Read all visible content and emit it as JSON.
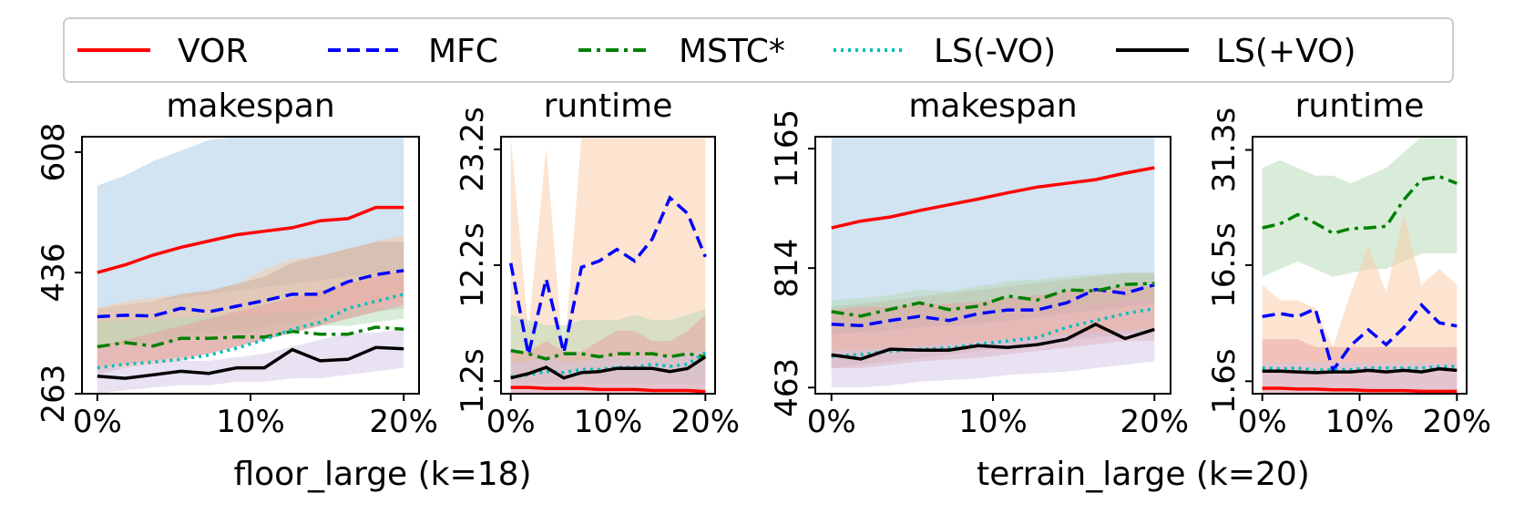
{
  "legend": {
    "placement": "top-center",
    "entries": [
      {
        "name": "VOR",
        "color": "#ff0000",
        "dash": "solid"
      },
      {
        "name": "MFC",
        "color": "#0000ff",
        "dash": "dashed"
      },
      {
        "name": "MSTC*",
        "color": "#008000",
        "dash": "dashdot"
      },
      {
        "name": "LS(-VO)",
        "color": "#00bfbf",
        "dash": "dotted"
      },
      {
        "name": "LS(+VO)",
        "color": "#000000",
        "dash": "solid"
      }
    ]
  },
  "groups": [
    {
      "xlabel": "floor_large (k=18)"
    },
    {
      "xlabel": "terrain_large (k=20)"
    }
  ],
  "chart_data": [
    {
      "type": "line",
      "title": "makespan",
      "group": 0,
      "x": [
        0,
        1.82,
        3.64,
        5.45,
        7.27,
        9.09,
        10.91,
        12.73,
        14.55,
        16.36,
        18.18,
        20
      ],
      "x_ticks": [
        "0%",
        "10%",
        "20%"
      ],
      "x_tick_values": [
        0,
        10,
        20
      ],
      "y_ticks": [
        "263",
        "436",
        "608"
      ],
      "y_tick_values": [
        263,
        436,
        608
      ],
      "ylim": [
        263,
        630
      ],
      "grid": false,
      "bands": [
        {
          "color": "#a6c8e3",
          "lower": [
            385,
            390,
            395,
            400,
            405,
            410,
            415,
            420,
            425,
            430,
            435,
            440
          ],
          "upper": [
            560,
            575,
            595,
            610,
            625,
            635,
            640,
            645,
            645,
            648,
            650,
            655
          ]
        },
        {
          "color": "#f9c9a3",
          "lower": [
            330,
            335,
            340,
            345,
            350,
            355,
            360,
            365,
            375,
            385,
            390,
            400
          ],
          "upper": [
            385,
            395,
            400,
            405,
            410,
            420,
            440,
            455,
            460,
            470,
            480,
            490
          ]
        },
        {
          "color": "#c8ab9c",
          "lower": [
            300,
            305,
            310,
            315,
            320,
            330,
            340,
            350,
            360,
            370,
            380,
            385
          ],
          "upper": [
            385,
            390,
            395,
            405,
            410,
            420,
            430,
            450,
            460,
            470,
            480,
            480
          ]
        },
        {
          "color": "#b4d9b4",
          "lower": [
            330,
            335,
            335,
            340,
            345,
            350,
            350,
            355,
            360,
            360,
            365,
            370
          ],
          "upper": [
            365,
            368,
            368,
            372,
            374,
            376,
            378,
            380,
            382,
            385,
            388,
            388
          ]
        },
        {
          "color": "#e7a0a0",
          "lower": [
            290,
            300,
            305,
            310,
            320,
            330,
            340,
            350,
            360,
            370,
            380,
            390
          ],
          "upper": [
            330,
            340,
            350,
            360,
            370,
            380,
            390,
            400,
            410,
            420,
            430,
            440
          ]
        },
        {
          "color": "#d4c6e6",
          "lower": [
            263,
            268,
            272,
            275,
            275,
            280,
            280,
            285,
            285,
            290,
            295,
            300
          ],
          "upper": [
            300,
            300,
            305,
            310,
            310,
            315,
            320,
            330,
            340,
            350,
            350,
            355
          ]
        }
      ],
      "series": [
        {
          "name": "VOR",
          "values": [
            436,
            447,
            461,
            472,
            481,
            490,
            495,
            500,
            510,
            513,
            529,
            529
          ]
        },
        {
          "name": "MFC",
          "values": [
            373,
            375,
            374,
            385,
            380,
            388,
            396,
            405,
            405,
            423,
            433,
            439
          ]
        },
        {
          "name": "MSTC*",
          "values": [
            330,
            336,
            331,
            342,
            342,
            344,
            344,
            352,
            348,
            348,
            358,
            355
          ]
        },
        {
          "name": "LS(-VO)",
          "values": [
            300,
            305,
            308,
            312,
            318,
            328,
            340,
            355,
            365,
            385,
            395,
            405
          ]
        },
        {
          "name": "LS(+VO)",
          "values": [
            288,
            285,
            290,
            295,
            292,
            300,
            300,
            326,
            310,
            312,
            329,
            327
          ]
        }
      ]
    },
    {
      "type": "line",
      "title": "runtime",
      "group": 0,
      "x": [
        0,
        1.82,
        3.64,
        5.45,
        7.27,
        9.09,
        10.91,
        12.73,
        14.55,
        16.36,
        18.18,
        20
      ],
      "x_ticks": [
        "0%",
        "10%",
        "20%"
      ],
      "x_tick_values": [
        0,
        10,
        20
      ],
      "y_ticks": [
        "1.2s",
        "12.2s",
        "23.2s"
      ],
      "y_tick_values": [
        1.2,
        12.2,
        23.2
      ],
      "ylim": [
        0,
        24.4
      ],
      "grid": false,
      "bands": [
        {
          "color": "#f9c9a3",
          "lower": [
            0,
            0,
            0,
            0,
            0,
            0,
            0,
            0,
            0,
            0,
            0,
            0
          ],
          "upper": [
            24.4,
            6,
            23.4,
            3,
            24.4,
            24.4,
            24.4,
            24.4,
            24.4,
            24.4,
            24.4,
            24.4
          ]
        },
        {
          "color": "#b4d9b4",
          "lower": [
            1.0,
            1.0,
            1.0,
            1.0,
            1.0,
            1.0,
            1.0,
            1.0,
            1.0,
            1.0,
            1.0,
            1.0
          ],
          "upper": [
            7.5,
            7.0,
            6.5,
            6.5,
            7.0,
            7.0,
            7.0,
            7.5,
            7.0,
            7.0,
            7.5,
            8.0
          ]
        },
        {
          "color": "#e7a0a0",
          "lower": [
            0,
            0,
            0,
            0,
            0,
            0,
            0,
            0,
            0,
            0,
            0,
            0
          ],
          "upper": [
            4,
            4,
            5,
            4,
            4,
            5,
            6,
            6,
            5,
            5,
            6,
            7.5
          ]
        },
        {
          "color": "#d4c6e6",
          "lower": [
            0,
            0,
            0,
            0,
            0,
            0,
            0,
            0,
            0,
            0,
            0,
            0
          ],
          "upper": [
            3,
            3,
            3.5,
            3,
            3,
            3.5,
            3.5,
            3.5,
            3.5,
            3.5,
            4,
            4
          ]
        }
      ],
      "series": [
        {
          "name": "VOR",
          "values": [
            0.6,
            0.6,
            0.5,
            0.5,
            0.5,
            0.4,
            0.4,
            0.4,
            0.3,
            0.3,
            0.3,
            0.2
          ]
        },
        {
          "name": "MFC",
          "values": [
            12.4,
            3.7,
            10.9,
            3.9,
            12.0,
            12.6,
            13.7,
            12.6,
            14.7,
            18.6,
            17.1,
            13.0
          ]
        },
        {
          "name": "MSTC*",
          "values": [
            4.1,
            3.8,
            3.3,
            3.8,
            3.8,
            3.5,
            3.8,
            3.8,
            3.8,
            3.5,
            3.8,
            3.5
          ]
        },
        {
          "name": "LS(-VO)",
          "values": [
            1.6,
            1.8,
            2.1,
            2.0,
            2.3,
            2.3,
            2.5,
            2.5,
            2.8,
            2.6,
            2.8,
            3.9
          ]
        },
        {
          "name": "LS(+VO)",
          "values": [
            1.5,
            1.9,
            2.5,
            1.5,
            2.0,
            2.1,
            2.4,
            2.4,
            2.4,
            2.1,
            2.4,
            3.5
          ]
        }
      ]
    },
    {
      "type": "line",
      "title": "makespan",
      "group": 1,
      "x": [
        0,
        1.82,
        3.64,
        5.45,
        7.27,
        9.09,
        10.91,
        12.73,
        14.55,
        16.36,
        18.18,
        20
      ],
      "x_ticks": [
        "0%",
        "10%",
        "20%"
      ],
      "x_tick_values": [
        0,
        10,
        20
      ],
      "y_ticks": [
        "463",
        "814",
        "1165"
      ],
      "y_tick_values": [
        463,
        814,
        1165
      ],
      "ylim": [
        445,
        1200
      ],
      "grid": false,
      "bands": [
        {
          "color": "#a6c8e3",
          "lower": [
            620,
            625,
            630,
            640,
            645,
            650,
            660,
            670,
            680,
            690,
            700,
            710
          ],
          "upper": [
            1200,
            1200,
            1200,
            1200,
            1200,
            1200,
            1200,
            1200,
            1200,
            1200,
            1200,
            1200
          ]
        },
        {
          "color": "#c8ab9c",
          "lower": [
            520,
            530,
            540,
            550,
            560,
            570,
            580,
            590,
            600,
            610,
            620,
            630
          ],
          "upper": [
            700,
            710,
            720,
            730,
            740,
            750,
            760,
            770,
            780,
            790,
            800,
            800
          ]
        },
        {
          "color": "#b4d9b4",
          "lower": [
            630,
            640,
            650,
            660,
            660,
            670,
            680,
            690,
            700,
            710,
            720,
            720
          ],
          "upper": [
            720,
            725,
            735,
            750,
            745,
            760,
            775,
            780,
            790,
            795,
            800,
            800
          ]
        },
        {
          "color": "#e7a0a0",
          "lower": [
            520,
            520,
            530,
            540,
            545,
            550,
            560,
            570,
            580,
            590,
            600,
            600
          ],
          "upper": [
            690,
            700,
            700,
            710,
            710,
            715,
            725,
            735,
            745,
            755,
            760,
            760
          ]
        },
        {
          "color": "#d4c6e6",
          "lower": [
            463,
            463,
            470,
            480,
            485,
            490,
            500,
            505,
            510,
            520,
            530,
            540
          ],
          "upper": [
            570,
            575,
            580,
            585,
            590,
            600,
            605,
            610,
            620,
            625,
            630,
            640
          ]
        }
      ],
      "series": [
        {
          "name": "VOR",
          "values": [
            932,
            952,
            964,
            983,
            1000,
            1017,
            1035,
            1052,
            1063,
            1074,
            1093,
            1109
          ]
        },
        {
          "name": "MFC",
          "values": [
            649,
            645,
            660,
            672,
            660,
            680,
            691,
            691,
            712,
            751,
            740,
            765
          ]
        },
        {
          "name": "MSTC*",
          "values": [
            686,
            673,
            693,
            712,
            692,
            702,
            732,
            720,
            750,
            747,
            766,
            769
          ]
        },
        {
          "name": "LS(-VO)",
          "values": [
            555,
            560,
            570,
            575,
            580,
            590,
            600,
            610,
            640,
            660,
            680,
            695
          ]
        },
        {
          "name": "LS(+VO)",
          "values": [
            559,
            547,
            576,
            573,
            573,
            586,
            581,
            589,
            605,
            649,
            607,
            634
          ]
        }
      ]
    },
    {
      "type": "line",
      "title": "runtime",
      "group": 1,
      "x": [
        0,
        1.82,
        3.64,
        5.45,
        7.27,
        9.09,
        10.91,
        12.73,
        14.55,
        16.36,
        18.18,
        20
      ],
      "x_ticks": [
        "0%",
        "10%",
        "20%"
      ],
      "x_tick_values": [
        0,
        10,
        20
      ],
      "y_ticks": [
        "1.6s",
        "16.5s",
        "31.3s"
      ],
      "y_tick_values": [
        1.6,
        16.5,
        31.3
      ],
      "ylim": [
        0,
        33
      ],
      "grid": false,
      "bands": [
        {
          "color": "#b4d9b4",
          "lower": [
            15,
            16,
            17,
            16,
            15,
            15.5,
            16,
            16,
            17,
            18,
            18,
            18
          ],
          "upper": [
            29,
            30,
            29,
            28,
            28,
            27,
            28,
            29,
            31,
            33,
            33,
            33
          ]
        },
        {
          "color": "#f9c9a3",
          "lower": [
            0,
            0,
            0,
            0,
            0,
            0,
            0,
            0,
            0,
            0,
            0,
            0
          ],
          "upper": [
            14,
            12,
            12,
            11,
            6,
            13,
            19,
            13,
            23,
            14,
            16,
            14
          ]
        },
        {
          "color": "#e7a0a0",
          "lower": [
            0,
            0,
            0,
            0,
            0,
            0,
            0,
            0,
            0,
            0,
            0,
            0
          ],
          "upper": [
            7,
            7,
            7,
            6,
            6,
            6,
            6,
            6,
            6,
            6,
            6,
            6
          ]
        },
        {
          "color": "#d4c6e6",
          "lower": [
            0,
            0,
            0,
            0,
            0,
            0,
            0,
            0,
            0,
            0,
            0,
            0
          ],
          "upper": [
            4,
            4,
            4,
            4,
            4,
            4,
            4,
            4,
            4,
            4,
            4,
            4
          ]
        }
      ],
      "series": [
        {
          "name": "VOR",
          "values": [
            0.7,
            0.7,
            0.6,
            0.6,
            0.5,
            0.5,
            0.4,
            0.4,
            0.4,
            0.3,
            0.3,
            0.3
          ]
        },
        {
          "name": "MFC",
          "values": [
            9.9,
            10.3,
            9.9,
            10.9,
            3.0,
            6.2,
            8.2,
            6.3,
            8.5,
            11.4,
            9.1,
            8.7
          ]
        },
        {
          "name": "MSTC*",
          "values": [
            21.3,
            21.8,
            23.0,
            21.9,
            20.6,
            21.2,
            21.3,
            21.5,
            24.9,
            27.5,
            27.9,
            27.0
          ]
        },
        {
          "name": "LS(-VO)",
          "values": [
            3.3,
            3.2,
            3.3,
            3.0,
            3.1,
            3.1,
            3.3,
            3.3,
            3.3,
            3.3,
            3.5,
            3.5
          ]
        },
        {
          "name": "LS(+VO)",
          "values": [
            2.9,
            2.9,
            2.8,
            2.7,
            2.8,
            2.8,
            3.0,
            2.8,
            3.0,
            2.8,
            3.2,
            3.0
          ]
        }
      ]
    }
  ]
}
